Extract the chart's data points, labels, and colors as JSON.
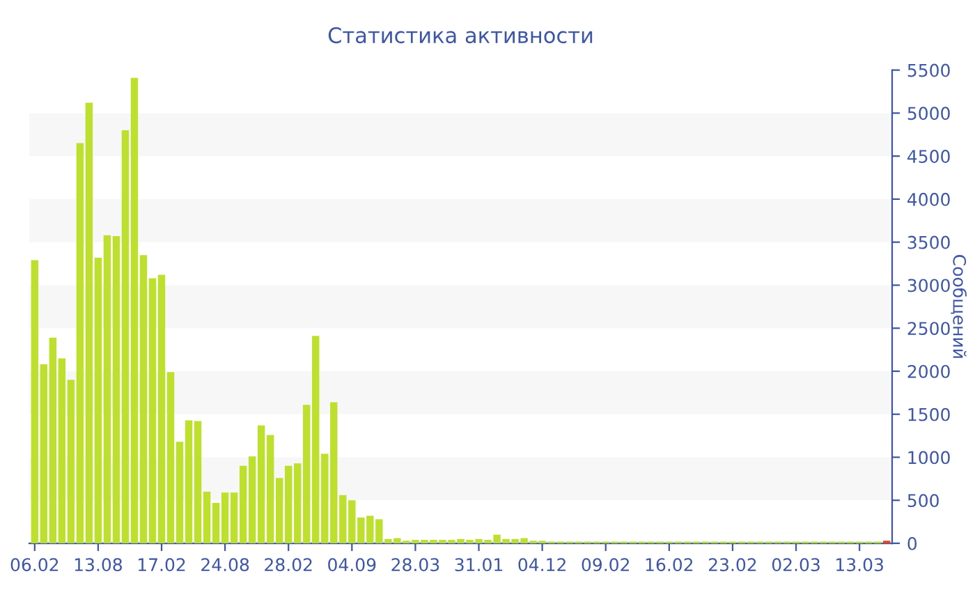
{
  "chart_data": {
    "type": "bar",
    "title": "Статистика активности",
    "ylabel": "Сообщений",
    "categories": [
      "06.02",
      null,
      null,
      null,
      null,
      null,
      null,
      "13.08",
      null,
      null,
      null,
      null,
      null,
      null,
      "17.02",
      null,
      null,
      null,
      null,
      null,
      null,
      "24.08",
      null,
      null,
      null,
      null,
      null,
      null,
      "28.02",
      null,
      null,
      null,
      null,
      null,
      null,
      "04.09",
      null,
      null,
      null,
      null,
      null,
      null,
      "28.03",
      null,
      null,
      null,
      null,
      null,
      null,
      "31.01",
      null,
      null,
      null,
      null,
      null,
      null,
      "04.12",
      null,
      null,
      null,
      null,
      null,
      null,
      "09.02",
      null,
      null,
      null,
      null,
      null,
      null,
      "16.02",
      null,
      null,
      null,
      null,
      null,
      null,
      "23.02",
      null,
      null,
      null,
      null,
      null,
      null,
      "02.03",
      null,
      null,
      null,
      null,
      null,
      null,
      "13.03",
      null,
      null,
      null
    ],
    "values": [
      3290,
      2080,
      2390,
      2150,
      1900,
      4650,
      5120,
      3320,
      3580,
      3570,
      4800,
      5410,
      3350,
      3080,
      3120,
      1990,
      1180,
      1430,
      1420,
      600,
      470,
      590,
      590,
      900,
      1010,
      1370,
      1260,
      760,
      900,
      930,
      1610,
      2410,
      1040,
      1640,
      560,
      500,
      300,
      320,
      280,
      50,
      60,
      30,
      40,
      40,
      40,
      40,
      40,
      50,
      40,
      50,
      40,
      100,
      50,
      50,
      60,
      30,
      30,
      20,
      20,
      20,
      20,
      20,
      20,
      20,
      20,
      20,
      20,
      20,
      20,
      20,
      20,
      20,
      20,
      20,
      20,
      20,
      20,
      20,
      20,
      20,
      20,
      20,
      20,
      20,
      20,
      20,
      20,
      20,
      20,
      20,
      20,
      20,
      20,
      20,
      30
    ],
    "colors": [
      "#bde02e",
      "#bde02e",
      "#bde02e",
      "#bde02e",
      "#bde02e",
      "#bde02e",
      "#bde02e",
      "#bde02e",
      "#bde02e",
      "#bde02e",
      "#bde02e",
      "#bde02e",
      "#bde02e",
      "#bde02e",
      "#bde02e",
      "#bde02e",
      "#bde02e",
      "#bde02e",
      "#bde02e",
      "#bde02e",
      "#bde02e",
      "#bde02e",
      "#bde02e",
      "#bde02e",
      "#bde02e",
      "#bde02e",
      "#bde02e",
      "#bde02e",
      "#bde02e",
      "#bde02e",
      "#bde02e",
      "#bde02e",
      "#bde02e",
      "#bde02e",
      "#bde02e",
      "#bde02e",
      "#bde02e",
      "#bde02e",
      "#bde02e",
      "#bde02e",
      "#bde02e",
      "#bde02e",
      "#bde02e",
      "#bde02e",
      "#bde02e",
      "#bde02e",
      "#bde02e",
      "#bde02e",
      "#bde02e",
      "#bde02e",
      "#bde02e",
      "#bde02e",
      "#bde02e",
      "#bde02e",
      "#bde02e",
      "#bde02e",
      "#bde02e",
      "#bde02e",
      "#bde02e",
      "#bde02e",
      "#bde02e",
      "#bde02e",
      "#bde02e",
      "#bde02e",
      "#bde02e",
      "#bde02e",
      "#bde02e",
      "#bde02e",
      "#bde02e",
      "#bde02e",
      "#bde02e",
      "#bde02e",
      "#bde02e",
      "#bde02e",
      "#bde02e",
      "#bde02e",
      "#bde02e",
      "#bde02e",
      "#bde02e",
      "#bde02e",
      "#bde02e",
      "#bde02e",
      "#bde02e",
      "#bde02e",
      "#bde02e",
      "#bde02e",
      "#bde02e",
      "#bde02e",
      "#bde02e",
      "#bde02e",
      "#bde02e",
      "#bde02e",
      "#bde02e",
      "#bde02e",
      "#e8441c"
    ],
    "ylim": [
      0,
      5500
    ],
    "yticks": [
      0,
      500,
      1000,
      1500,
      2000,
      2500,
      3000,
      3500,
      4000,
      4500,
      5000,
      5500
    ],
    "bands": [
      {
        "axis": "y",
        "from": 500,
        "to": 1000,
        "color": "#f7f7f7"
      },
      {
        "axis": "y",
        "from": 1500,
        "to": 2000,
        "color": "#f7f7f7"
      },
      {
        "axis": "y",
        "from": 2500,
        "to": 3000,
        "color": "#f7f7f7"
      },
      {
        "axis": "y",
        "from": 3500,
        "to": 4000,
        "color": "#f7f7f7"
      },
      {
        "axis": "y",
        "from": 4500,
        "to": 5000,
        "color": "#f7f7f7"
      }
    ],
    "grid": false,
    "legend": false
  }
}
